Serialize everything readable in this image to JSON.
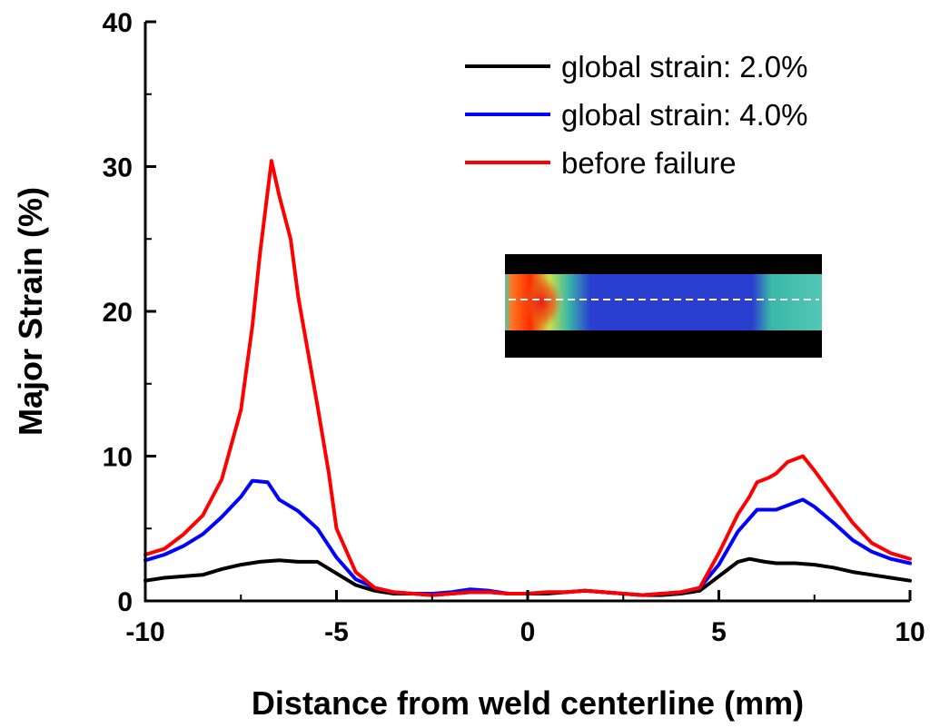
{
  "chart_data": {
    "type": "line",
    "title": "",
    "xlabel": "Distance from weld centerline (mm)",
    "ylabel": "Major Strain (%)",
    "xlim": [
      -10,
      10
    ],
    "ylim": [
      0,
      40
    ],
    "xticks": [
      -10,
      -5,
      0,
      5,
      10
    ],
    "yticks": [
      0,
      10,
      20,
      30,
      40
    ],
    "xtick_labels": [
      "-10",
      "-5",
      "0",
      "5",
      "10"
    ],
    "ytick_labels": [
      "0",
      "10",
      "20",
      "30",
      "40"
    ],
    "legend_position": "top-right",
    "series": [
      {
        "name": "global strain: 2.0%",
        "color": "#000000",
        "x": [
          -10,
          -9.5,
          -9,
          -8.5,
          -8,
          -7.5,
          -7,
          -6.5,
          -6,
          -5.5,
          -5,
          -4.5,
          -4,
          -3.5,
          -3,
          -2.5,
          -2,
          -1.5,
          -1,
          -0.5,
          0,
          0.5,
          1,
          1.5,
          2,
          2.5,
          3,
          3.5,
          4,
          4.5,
          5,
          5.5,
          5.8,
          6.2,
          6.5,
          7,
          7.5,
          8,
          8.5,
          9,
          9.5,
          10
        ],
        "y": [
          1.4,
          1.6,
          1.7,
          1.8,
          2.2,
          2.5,
          2.7,
          2.8,
          2.7,
          2.7,
          1.9,
          1.1,
          0.7,
          0.5,
          0.5,
          0.4,
          0.5,
          0.6,
          0.6,
          0.5,
          0.5,
          0.5,
          0.6,
          0.7,
          0.6,
          0.5,
          0.4,
          0.4,
          0.5,
          0.7,
          1.7,
          2.7,
          2.9,
          2.7,
          2.6,
          2.6,
          2.5,
          2.3,
          2.0,
          1.8,
          1.6,
          1.4
        ]
      },
      {
        "name": "global strain: 4.0%",
        "color": "#0000ff",
        "x": [
          -10,
          -9.5,
          -9,
          -8.5,
          -8,
          -7.5,
          -7.2,
          -6.8,
          -6.5,
          -6,
          -5.5,
          -5,
          -4.5,
          -4,
          -3.5,
          -3,
          -2.5,
          -2,
          -1.5,
          -1,
          -0.5,
          0,
          0.5,
          1,
          1.5,
          2,
          2.5,
          3,
          3.5,
          4,
          4.5,
          5,
          5.5,
          6,
          6.5,
          7,
          7.2,
          7.5,
          8,
          8.5,
          9,
          9.5,
          10
        ],
        "y": [
          2.8,
          3.2,
          3.8,
          4.6,
          5.8,
          7.2,
          8.3,
          8.2,
          7.0,
          6.2,
          5.0,
          3.0,
          1.5,
          0.9,
          0.6,
          0.5,
          0.5,
          0.6,
          0.8,
          0.7,
          0.5,
          0.5,
          0.6,
          0.6,
          0.7,
          0.6,
          0.5,
          0.4,
          0.5,
          0.6,
          0.9,
          2.5,
          4.8,
          6.3,
          6.3,
          6.8,
          7.0,
          6.5,
          5.4,
          4.2,
          3.4,
          2.9,
          2.6
        ]
      },
      {
        "name": "before failure",
        "color": "#ff0000",
        "x": [
          -10,
          -9.5,
          -9,
          -8.5,
          -8,
          -7.5,
          -7.2,
          -7,
          -6.7,
          -6.5,
          -6.2,
          -6,
          -5.5,
          -5.2,
          -5,
          -4.5,
          -4,
          -3.5,
          -3,
          -2.5,
          -2,
          -1.5,
          -1,
          -0.5,
          0,
          0.5,
          1,
          1.5,
          2,
          2.5,
          3,
          3.5,
          4,
          4.5,
          5,
          5.5,
          5.8,
          6,
          6.3,
          6.5,
          6.8,
          7,
          7.2,
          7.5,
          8,
          8.5,
          9,
          9.5,
          10
        ],
        "y": [
          3.2,
          3.6,
          4.6,
          5.9,
          8.4,
          13.2,
          19.0,
          24.0,
          30.4,
          28.0,
          25.0,
          21.0,
          13.5,
          8.8,
          5.0,
          2.0,
          0.9,
          0.6,
          0.5,
          0.4,
          0.5,
          0.6,
          0.6,
          0.5,
          0.5,
          0.6,
          0.6,
          0.7,
          0.6,
          0.5,
          0.4,
          0.5,
          0.6,
          0.9,
          3.3,
          6.0,
          7.2,
          8.2,
          8.5,
          8.8,
          9.6,
          9.8,
          10.0,
          9.0,
          7.2,
          5.4,
          4.0,
          3.3,
          2.9
        ]
      }
    ],
    "inset": {
      "description_color_stops": [
        "#000000",
        "#2a3fd0",
        "#3ab8a8",
        "#ff2a00"
      ],
      "dashed_line_color": "#ffffff"
    }
  }
}
